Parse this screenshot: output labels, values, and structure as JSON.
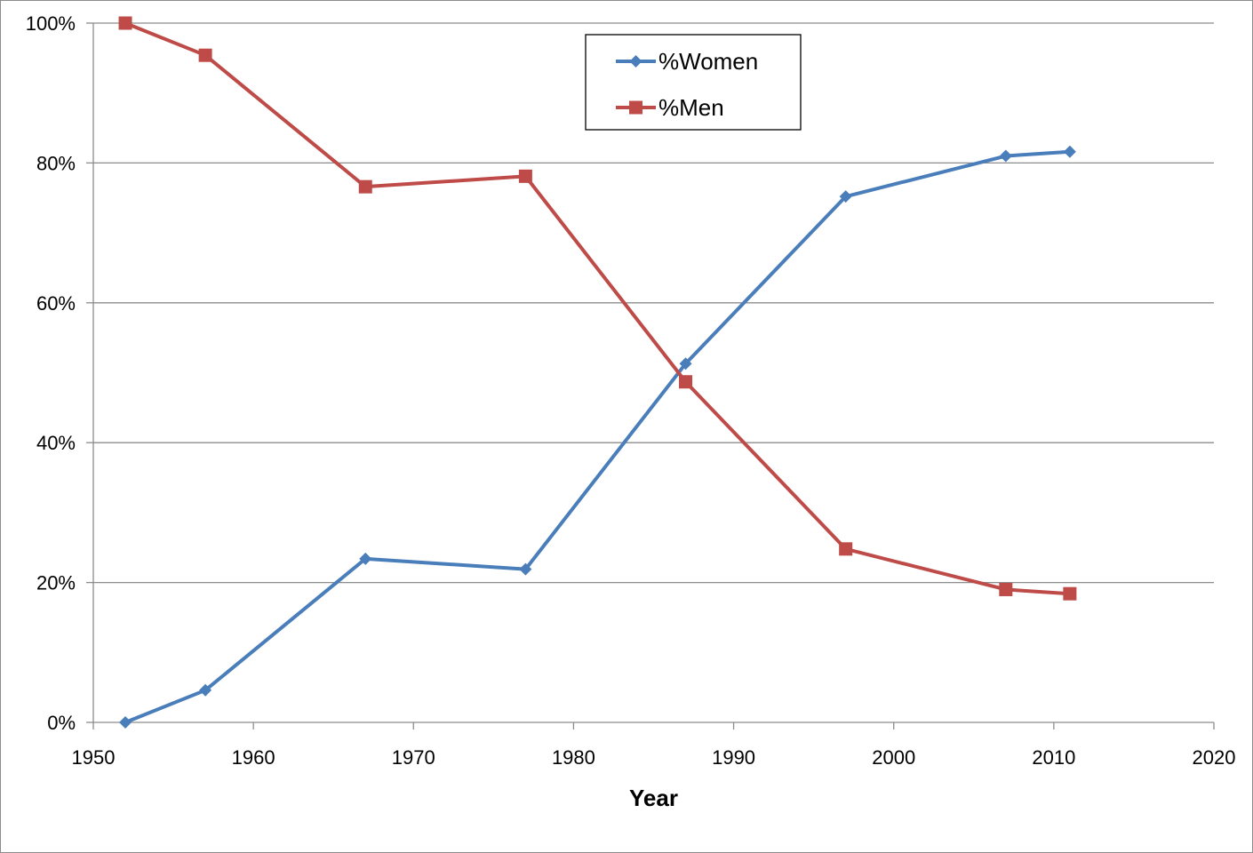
{
  "chart_data": {
    "type": "line",
    "title": "",
    "xlabel": "Year",
    "ylabel": "",
    "xlim": [
      1950,
      2020
    ],
    "ylim": [
      0,
      100
    ],
    "x_ticks": [
      1950,
      1960,
      1970,
      1980,
      1990,
      2000,
      2010,
      2020
    ],
    "y_ticks": [
      0,
      20,
      40,
      60,
      80,
      100
    ],
    "y_tick_labels": [
      "0%",
      "20%",
      "40%",
      "60%",
      "80%",
      "100%"
    ],
    "grid": "horizontal",
    "legend_position": "top-center",
    "series": [
      {
        "name": "%Women",
        "color": "#4a7ebb",
        "marker": "diamond",
        "x": [
          1952,
          1957,
          1967,
          1977,
          1987,
          1997,
          2007,
          2011
        ],
        "y": [
          0,
          4.6,
          23.4,
          21.9,
          51.3,
          75.2,
          81.0,
          81.6
        ]
      },
      {
        "name": "%Men",
        "color": "#be4b48",
        "marker": "square",
        "x": [
          1952,
          1957,
          1967,
          1977,
          1987,
          1997,
          2007,
          2011
        ],
        "y": [
          100,
          95.4,
          76.6,
          78.1,
          48.7,
          24.8,
          19.0,
          18.4
        ]
      }
    ]
  }
}
